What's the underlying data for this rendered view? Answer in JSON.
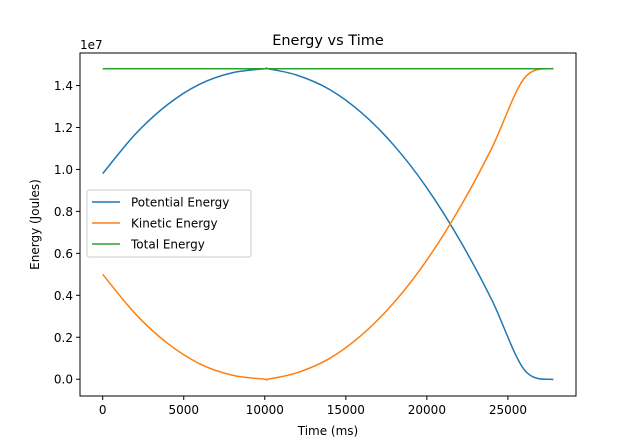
{
  "chart_data": {
    "type": "line",
    "title": "Energy vs Time",
    "xlabel": "Time (ms)",
    "ylabel": "Energy (Joules)",
    "y_offset_label": "1e7",
    "xlim": [
      -1400,
      29200
    ],
    "ylim": [
      -0.08,
      1.555
    ],
    "x_ticks": [
      0,
      5000,
      10000,
      15000,
      20000,
      25000
    ],
    "x_tick_labels": [
      "0",
      "5000",
      "10000",
      "15000",
      "20000",
      "25000"
    ],
    "y_ticks": [
      0.0,
      0.2,
      0.4,
      0.6,
      0.8,
      1.0,
      1.2,
      1.4
    ],
    "y_tick_labels": [
      "0.0",
      "0.2",
      "0.4",
      "0.6",
      "0.8",
      "1.0",
      "1.2",
      "1.4"
    ],
    "grid": false,
    "legend_position": "center-left",
    "series": [
      {
        "name": "Potential Energy",
        "color": "#1f77b4",
        "x": [
          0,
          2000,
          4000,
          6000,
          8000,
          10000,
          10200,
          12000,
          14000,
          16000,
          18000,
          20000,
          22000,
          24000,
          26000,
          27800
        ],
        "y": [
          0.98,
          1.167,
          1.309,
          1.407,
          1.461,
          1.48,
          1.48,
          1.449,
          1.381,
          1.268,
          1.112,
          0.912,
          0.667,
          0.379,
          0.046,
          -0.002
        ]
      },
      {
        "name": "Kinetic Energy",
        "color": "#ff7f0e",
        "x": [
          0,
          2000,
          4000,
          6000,
          8000,
          10000,
          10200,
          12000,
          14000,
          16000,
          18000,
          20000,
          22000,
          24000,
          26000,
          27800
        ],
        "y": [
          0.5,
          0.313,
          0.171,
          0.073,
          0.019,
          0.0,
          0.0,
          0.031,
          0.099,
          0.212,
          0.368,
          0.568,
          0.813,
          1.101,
          1.434,
          1.482
        ]
      },
      {
        "name": "Total Energy",
        "color": "#2ca02c",
        "x": [
          0,
          27800
        ],
        "y": [
          1.48,
          1.48
        ]
      }
    ]
  }
}
